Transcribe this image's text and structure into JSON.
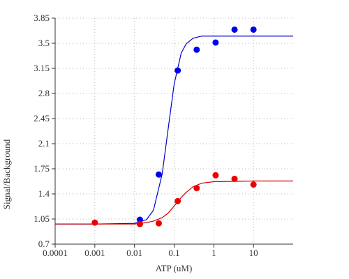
{
  "chart_data": {
    "type": "scatter",
    "x_label": "ATP (uM)",
    "y_label": "Signal/Background",
    "xscale": "log",
    "xlim": [
      0.0001,
      100
    ],
    "xticks": [
      0.0001,
      0.001,
      0.01,
      0.1,
      1,
      10
    ],
    "ylim": [
      0.7,
      3.85
    ],
    "yticks": [
      0.7,
      1.05,
      1.4,
      1.75,
      2.1,
      2.45,
      2.8,
      3.15,
      3.5,
      3.85
    ],
    "grid": true,
    "series": [
      {
        "type": "line",
        "color": "#0000cc",
        "x": [
          0.0001,
          0.001,
          0.01,
          0.02,
          0.03,
          0.05,
          0.07,
          0.1,
          0.15,
          0.2,
          0.3,
          0.5,
          1,
          10,
          100
        ],
        "values": [
          0.98,
          0.98,
          0.99,
          1.04,
          1.17,
          1.68,
          2.29,
          2.93,
          3.36,
          3.49,
          3.57,
          3.6,
          3.6,
          3.6,
          3.6
        ]
      },
      {
        "type": "line",
        "color": "#cc0000",
        "x": [
          0.0001,
          0.001,
          0.01,
          0.02,
          0.03,
          0.05,
          0.07,
          0.1,
          0.15,
          0.2,
          0.3,
          0.5,
          1,
          10,
          100
        ],
        "values": [
          0.98,
          0.98,
          0.98,
          1.0,
          1.02,
          1.07,
          1.13,
          1.23,
          1.35,
          1.42,
          1.5,
          1.55,
          1.57,
          1.58,
          1.58
        ]
      },
      {
        "type": "scatter",
        "color": "#0000ee",
        "x": [
          0.0137,
          0.041,
          0.123,
          0.37,
          1.11,
          3.33,
          10
        ],
        "values": [
          1.04,
          1.67,
          3.12,
          3.41,
          3.51,
          3.69,
          3.69
        ]
      },
      {
        "type": "scatter",
        "color": "#ee0000",
        "x": [
          0.001,
          0.0137,
          0.041,
          0.123,
          0.37,
          1.11,
          3.33,
          10
        ],
        "values": [
          1.0,
          0.98,
          0.99,
          1.3,
          1.48,
          1.66,
          1.61,
          1.53
        ]
      }
    ]
  }
}
